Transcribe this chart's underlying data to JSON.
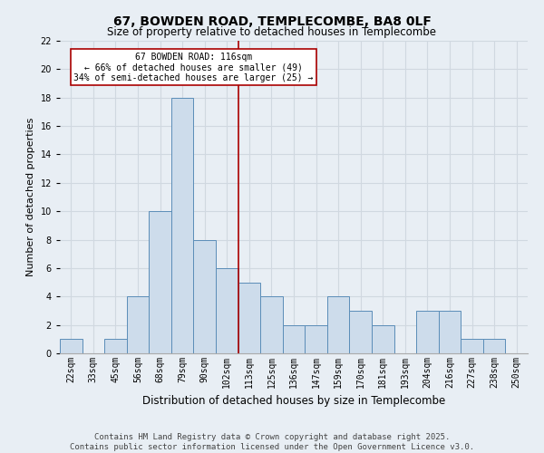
{
  "title": "67, BOWDEN ROAD, TEMPLECOMBE, BA8 0LF",
  "subtitle": "Size of property relative to detached houses in Templecombe",
  "xlabel": "Distribution of detached houses by size in Templecombe",
  "ylabel": "Number of detached properties",
  "categories": [
    "22sqm",
    "33sqm",
    "45sqm",
    "56sqm",
    "68sqm",
    "79sqm",
    "90sqm",
    "102sqm",
    "113sqm",
    "125sqm",
    "136sqm",
    "147sqm",
    "159sqm",
    "170sqm",
    "181sqm",
    "193sqm",
    "204sqm",
    "216sqm",
    "227sqm",
    "238sqm",
    "250sqm"
  ],
  "values": [
    1,
    0,
    1,
    4,
    10,
    18,
    8,
    6,
    5,
    4,
    2,
    2,
    4,
    3,
    2,
    0,
    3,
    3,
    1,
    1,
    0
  ],
  "bar_color": "#cddceb",
  "bar_edge_color": "#5b8db8",
  "ylim": [
    0,
    22
  ],
  "yticks": [
    0,
    2,
    4,
    6,
    8,
    10,
    12,
    14,
    16,
    18,
    20,
    22
  ],
  "vline_x_index": 7.5,
  "vline_color": "#aa0000",
  "annotation_text": "67 BOWDEN ROAD: 116sqm\n← 66% of detached houses are smaller (49)\n34% of semi-detached houses are larger (25) →",
  "annotation_box_color": "#aa0000",
  "footer_line1": "Contains HM Land Registry data © Crown copyright and database right 2025.",
  "footer_line2": "Contains public sector information licensed under the Open Government Licence v3.0.",
  "background_color": "#e8eef4",
  "grid_color": "#d0d8e0",
  "title_fontsize": 10,
  "tick_fontsize": 7,
  "ylabel_fontsize": 8,
  "xlabel_fontsize": 8.5,
  "footer_fontsize": 6.5
}
